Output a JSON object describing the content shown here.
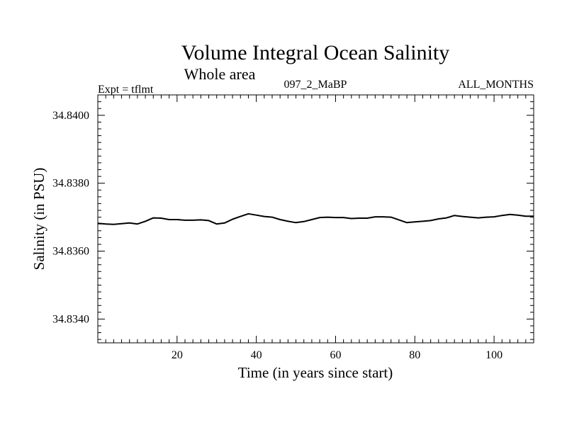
{
  "chart_data": {
    "type": "line",
    "title": "Volume Integral Ocean Salinity",
    "subtitle": "Whole area",
    "annotations": {
      "left": "Expt = tflmt",
      "center": "097_2_MaBP",
      "right": "ALL_MONTHS"
    },
    "xlabel": "Time (in years since start)",
    "ylabel": "Salinity (in PSU)",
    "xlim": [
      0,
      110
    ],
    "ylim": [
      34.8333,
      34.8406
    ],
    "x_ticks": [
      20,
      40,
      60,
      80,
      100
    ],
    "x_tick_labels": [
      "20",
      "40",
      "60",
      "80",
      "100"
    ],
    "y_ticks": [
      34.834,
      34.836,
      34.838,
      34.84
    ],
    "y_tick_labels": [
      "34.8340",
      "34.8360",
      "34.8380",
      "34.8400"
    ],
    "grid": false,
    "series": [
      {
        "name": "Salinity",
        "color": "#000000",
        "x": [
          0,
          2,
          4,
          6,
          8,
          10,
          12,
          14,
          16,
          18,
          20,
          22,
          24,
          26,
          28,
          30,
          32,
          34,
          36,
          38,
          40,
          42,
          44,
          46,
          48,
          50,
          52,
          54,
          56,
          58,
          60,
          62,
          64,
          66,
          68,
          70,
          72,
          74,
          76,
          78,
          80,
          82,
          84,
          86,
          88,
          90,
          92,
          94,
          96,
          98,
          100,
          102,
          104,
          106,
          108,
          110
        ],
        "values": [
          34.83682,
          34.8368,
          34.83679,
          34.83681,
          34.83683,
          34.8368,
          34.83688,
          34.83698,
          34.83697,
          34.83693,
          34.83693,
          34.83691,
          34.83691,
          34.83692,
          34.8369,
          34.8368,
          34.83683,
          34.83694,
          34.83702,
          34.8371,
          34.83706,
          34.83702,
          34.837,
          34.83693,
          34.83688,
          34.83684,
          34.83687,
          34.83693,
          34.83699,
          34.837,
          34.83699,
          34.83699,
          34.83696,
          34.83697,
          34.83697,
          34.83701,
          34.83701,
          34.837,
          34.83692,
          34.83684,
          34.83686,
          34.83688,
          34.8369,
          34.83695,
          34.83698,
          34.83705,
          34.83702,
          34.837,
          34.83698,
          34.837,
          34.83701,
          34.83705,
          34.83708,
          34.83706,
          34.83703,
          34.83703
        ]
      }
    ]
  }
}
